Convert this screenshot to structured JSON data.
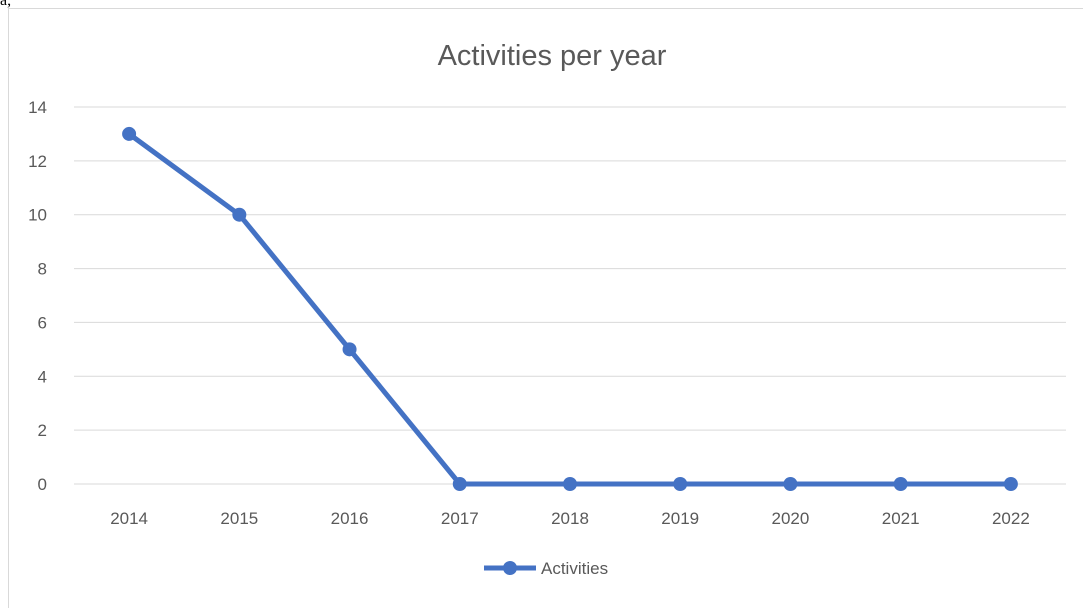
{
  "page_fragment": "a,",
  "chart_data": {
    "type": "line",
    "title": "Activities per year",
    "categories": [
      "2014",
      "2015",
      "2016",
      "2017",
      "2018",
      "2019",
      "2020",
      "2021",
      "2022"
    ],
    "series": [
      {
        "name": "Activities",
        "values": [
          13,
          10,
          5,
          0,
          0,
          0,
          0,
          0,
          0
        ]
      }
    ],
    "yticks": [
      "0",
      "2",
      "4",
      "6",
      "8",
      "10",
      "12",
      "14"
    ],
    "ylim": [
      0,
      14
    ],
    "grid": true,
    "legend_position": "bottom",
    "colors": {
      "series": "#4472c4",
      "grid": "#d9d9d9",
      "text": "#595959"
    }
  }
}
